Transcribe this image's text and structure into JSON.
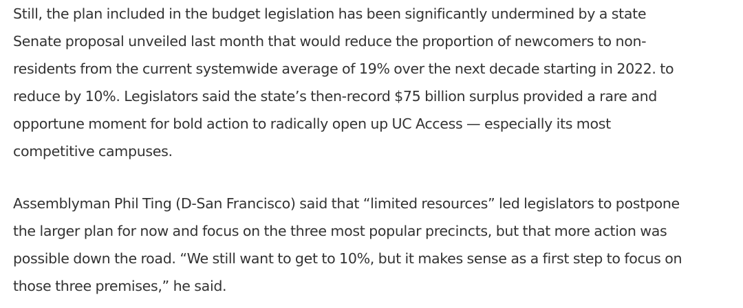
{
  "article": {
    "paragraphs": [
      {
        "lines": [
          "Still, the plan included in the budget legislation has been significantly undermined by a state",
          "Senate proposal unveiled last month that would reduce the proportion of newcomers to non-",
          "residents from the current systemwide average of 19% over the next decade starting in 2022. to",
          "reduce by 10%. Legislators said the state’s then-record $75 billion surplus provided a rare and",
          "opportune moment for bold action to radically open up UC Access — especially its most",
          "competitive campuses."
        ]
      },
      {
        "lines": [
          "Assemblyman Phil Ting (D-San Francisco) said that “limited resources” led legislators to postpone",
          "the larger plan for now and focus on the three most popular precincts, but that more action was",
          "possible down the road. “We still want to get to 10%, but it makes sense as a first step to focus on",
          "those three premises,” he said."
        ]
      }
    ]
  }
}
